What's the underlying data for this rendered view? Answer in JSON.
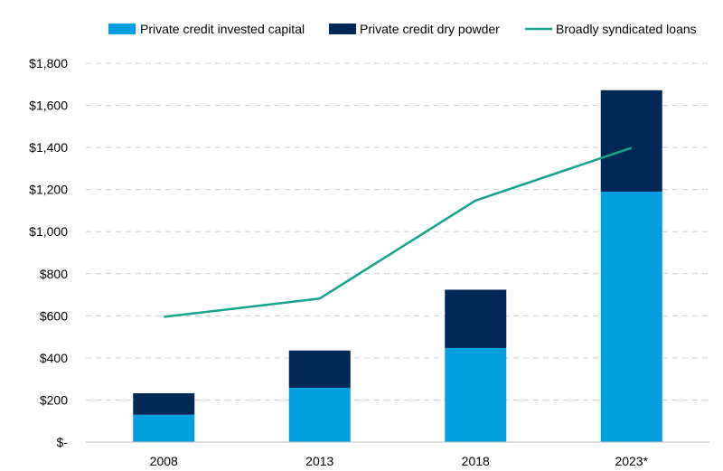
{
  "chart_data": {
    "type": "bar",
    "stacked": true,
    "title": "",
    "xlabel": "",
    "ylabel": "",
    "categories": [
      "2008",
      "2013",
      "2018",
      "2023*"
    ],
    "ylim": [
      0,
      1800
    ],
    "yticks": [
      0,
      200,
      400,
      600,
      800,
      1000,
      1200,
      1400,
      1600,
      1800
    ],
    "ytick_labels": [
      "$-",
      "$200",
      "$400",
      "$600",
      "$800",
      "$1,000",
      "$1,200",
      "$1,400",
      "$1,600",
      "$1,800"
    ],
    "grid": true,
    "legend_position": "top",
    "series": [
      {
        "name": "Private credit invested capital",
        "kind": "bar",
        "color": "#009FDF",
        "values": [
          130,
          258,
          447,
          1190
        ]
      },
      {
        "name": "Private credit dry powder",
        "kind": "bar",
        "color": "#002856",
        "values": [
          102,
          177,
          277,
          482
        ]
      },
      {
        "name": "Broadly syndicated loans",
        "kind": "line",
        "color": "#14A38B",
        "values": [
          595,
          682,
          1148,
          1398
        ]
      }
    ]
  }
}
